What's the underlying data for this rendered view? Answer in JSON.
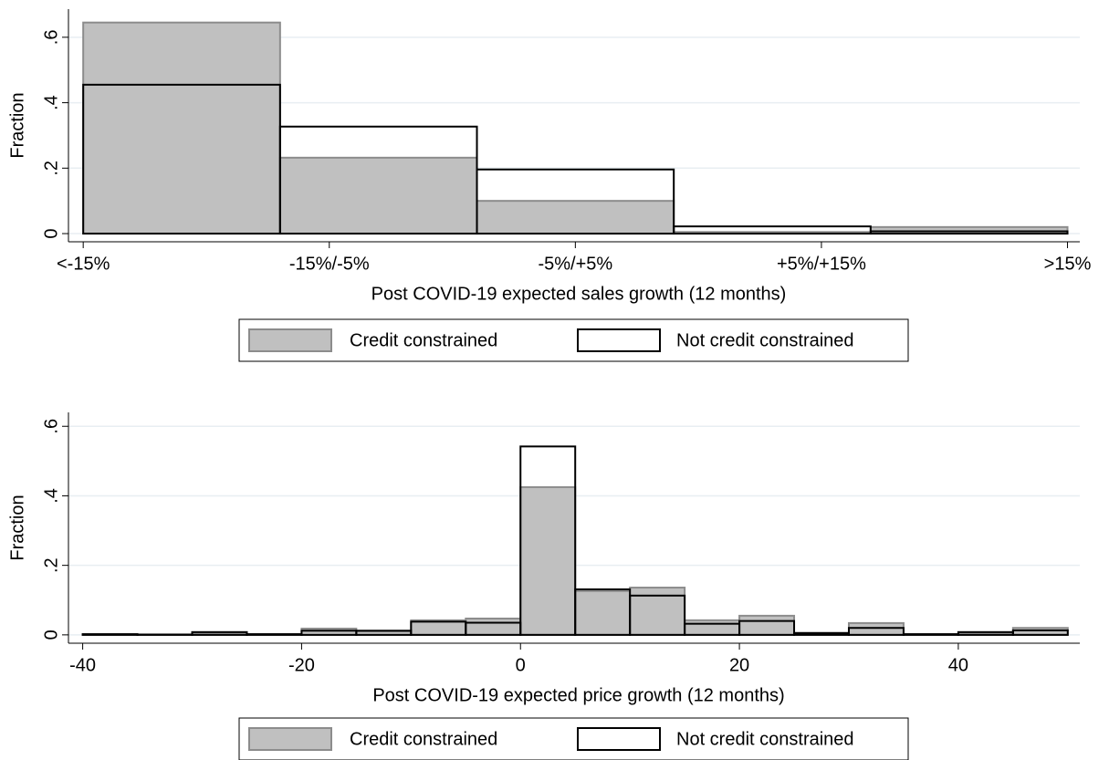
{
  "chart_data": [
    {
      "type": "histogram",
      "x_label": "Post COVID-19 expected sales growth (12 months)",
      "y_label": "Fraction",
      "bins": [
        1,
        1.8,
        2.6,
        3.4,
        4.2,
        5
      ],
      "series": [
        {
          "name": "Credit constrained",
          "color": "#c0c0c0",
          "edgecolor": "#8c8c8c",
          "values": [
            0.645,
            0.232,
            0.1,
            0.005,
            0.02
          ]
        },
        {
          "name": "Not credit constrained",
          "color": "none",
          "edgecolor": "#000000",
          "values": [
            0.455,
            0.327,
            0.196,
            0.022,
            0.007
          ]
        }
      ],
      "xlim": [
        0.94,
        5.05
      ],
      "xticks": [
        {
          "value": 1,
          "label": "<-15%"
        },
        {
          "value": 2,
          "label": "-15%/-5%"
        },
        {
          "value": 3,
          "label": "-5%/+5%"
        },
        {
          "value": 4,
          "label": "+5%/+15%"
        },
        {
          "value": 5,
          "label": ">15%"
        }
      ],
      "ylim": [
        -0.025,
        0.686
      ],
      "yticks": [
        0,
        {
          "value": 0.2,
          "label": ".2"
        },
        {
          "value": 0.4,
          "label": ".4"
        },
        {
          "value": 0.6,
          "label": ".6"
        }
      ],
      "grid": true,
      "legend": "bottom"
    },
    {
      "type": "histogram",
      "x_label": "Post COVID-19 expected price growth (12 months)",
      "y_label": "Fraction",
      "bins": [
        -40,
        -35,
        -30,
        -25,
        -20,
        -15,
        -10,
        -5,
        0,
        5,
        10,
        15,
        20,
        25,
        30,
        35,
        40,
        45,
        50
      ],
      "series": [
        {
          "name": "Credit constrained",
          "color": "#c0c0c0",
          "edgecolor": "#8c8c8c",
          "values": [
            0.002,
            0.001,
            0.006,
            0.002,
            0.018,
            0.01,
            0.042,
            0.047,
            0.425,
            0.126,
            0.136,
            0.042,
            0.055,
            0.006,
            0.034,
            0.002,
            0.006,
            0.02
          ]
        },
        {
          "name": "Not credit constrained",
          "color": "none",
          "edgecolor": "#000000",
          "values": [
            0.002,
            0.001,
            0.008,
            0.002,
            0.012,
            0.012,
            0.038,
            0.035,
            0.542,
            0.131,
            0.113,
            0.032,
            0.04,
            0.005,
            0.02,
            0.002,
            0.008,
            0.013
          ]
        }
      ],
      "xlim": [
        -41.3,
        51.1
      ],
      "xticks": [
        -40,
        -20,
        0,
        20,
        40
      ],
      "ylim": [
        -0.024,
        0.64
      ],
      "yticks": [
        0,
        {
          "value": 0.2,
          "label": ".2"
        },
        {
          "value": 0.4,
          "label": ".4"
        },
        {
          "value": 0.6,
          "label": ".6"
        }
      ],
      "grid": true,
      "legend": "bottom"
    }
  ]
}
